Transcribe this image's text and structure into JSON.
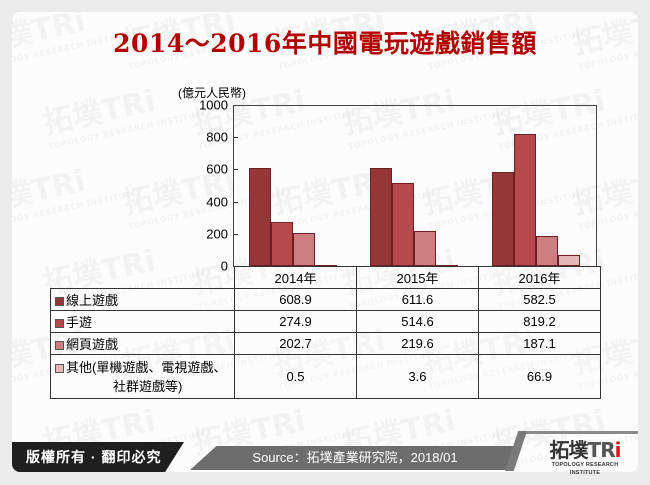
{
  "title": "2014～2016年中國電玩遊戲銷售額",
  "unit_label": "(億元人民幣)",
  "watermark": {
    "cn": "拓墣TRi",
    "en": "TOPOLOGY RESEARCH INSTITUTE"
  },
  "chart_data": {
    "type": "bar",
    "title": "2014～2016年中國電玩遊戲銷售額",
    "xlabel": "",
    "ylabel": "(億元人民幣)",
    "ylim": [
      0,
      1000
    ],
    "yticks": [
      0,
      200,
      400,
      600,
      800,
      1000
    ],
    "categories": [
      "2014年",
      "2015年",
      "2016年"
    ],
    "series": [
      {
        "name": "線上遊戲",
        "color": "#953639",
        "values": [
          608.9,
          611.6,
          582.5
        ]
      },
      {
        "name": "手遊",
        "color": "#b5494b",
        "values": [
          274.9,
          514.6,
          819.2
        ]
      },
      {
        "name": "網頁遊戲",
        "color": "#cd7e80",
        "values": [
          202.7,
          219.6,
          187.1
        ]
      },
      {
        "name": "其他(單機遊戲、電視遊戲、社群遊戲等)",
        "color": "#e6b7b8",
        "values": [
          0.5,
          3.6,
          66.9
        ]
      }
    ],
    "grid": false,
    "legend_position": "data-table"
  },
  "table": {
    "headers": [
      "2014年",
      "2015年",
      "2016年"
    ],
    "rows": [
      {
        "label": "線上遊戲",
        "values": [
          "608.9",
          "611.6",
          "582.5"
        ]
      },
      {
        "label": "手遊",
        "values": [
          "274.9",
          "514.6",
          "819.2"
        ]
      },
      {
        "label": "網頁遊戲",
        "values": [
          "202.7",
          "219.6",
          "187.1"
        ]
      },
      {
        "label_line1": "其他(單機遊戲、電視遊戲、",
        "label_line2": "社群遊戲等)",
        "values": [
          "0.5",
          "3.6",
          "66.9"
        ]
      }
    ]
  },
  "footer": {
    "copyright": "版權所有 · 翻印必究",
    "source": "Source：拓墣產業研究院，2018/01",
    "logo_cn": "拓墣",
    "logo_tri": "TR",
    "logo_i": "i",
    "logo_en": "TOPOLOGY RESEARCH INSTITUTE"
  }
}
